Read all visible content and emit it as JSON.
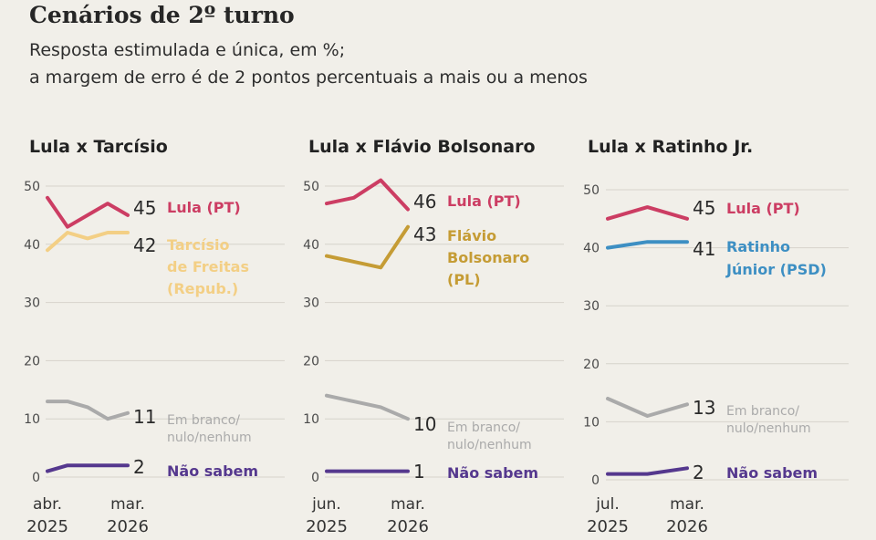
{
  "title": "Cenários de 2º turno",
  "subtitle_lines": [
    "Resposta estimulada e única, em %;",
    "a margem de erro é de 2 pontos percentuais a mais ou a menos"
  ],
  "colors": {
    "lula": "#cc3d63",
    "tarcisio": "#f3cf85",
    "flavio": "#c59c35",
    "ratinho": "#3d8fc3",
    "branco": "#aaaaaa",
    "nao_sabem": "#55388e",
    "grid": "#d6d3cb",
    "axis_text": "#4a4a4a"
  },
  "chart_data": [
    {
      "type": "line",
      "title": "Lula x Tarcísio",
      "ylim": [
        0,
        50
      ],
      "yticks": [
        0,
        10,
        20,
        30,
        40,
        50
      ],
      "x_labels": [
        [
          "abr.",
          "2025"
        ],
        [
          "mar.",
          "2026"
        ]
      ],
      "series": [
        {
          "name": "Lula (PT)",
          "label_lines": [
            "Lula (PT)"
          ],
          "color_key": "lula",
          "values": [
            48,
            43,
            45,
            47,
            45
          ],
          "final": "45"
        },
        {
          "name": "Tarcísio de Freitas (Repub.)",
          "label_lines": [
            "Tarcísio",
            "de Freitas",
            "(Repub.)"
          ],
          "color_key": "tarcisio",
          "values": [
            39,
            42,
            41,
            42,
            42
          ],
          "final": "42"
        },
        {
          "name": "Em branco/nulo/nenhum",
          "label_lines": [
            "Em branco/",
            "nulo/nenhum"
          ],
          "color_key": "branco",
          "values": [
            13,
            13,
            12,
            10,
            11
          ],
          "final": "11"
        },
        {
          "name": "Não sabem",
          "label_lines": [
            "Não sabem"
          ],
          "color_key": "nao_sabem",
          "values": [
            1,
            2,
            2,
            2,
            2
          ],
          "final": "2"
        }
      ]
    },
    {
      "type": "line",
      "title": "Lula x Flávio Bolsonaro",
      "ylim": [
        0,
        50
      ],
      "yticks": [
        0,
        10,
        20,
        30,
        40,
        50
      ],
      "x_labels": [
        [
          "jun.",
          "2025"
        ],
        [
          "mar.",
          "2026"
        ]
      ],
      "series": [
        {
          "name": "Lula (PT)",
          "label_lines": [
            "Lula (PT)"
          ],
          "color_key": "lula",
          "values": [
            47,
            48,
            51,
            46
          ],
          "final": "46"
        },
        {
          "name": "Flávio Bolsonaro (PL)",
          "label_lines": [
            "Flávio",
            "Bolsonaro",
            "(PL)"
          ],
          "color_key": "flavio",
          "values": [
            38,
            37,
            36,
            43
          ],
          "final": "43"
        },
        {
          "name": "Em branco/nulo/nenhum",
          "label_lines": [
            "Em branco/",
            "nulo/nenhum"
          ],
          "color_key": "branco",
          "values": [
            14,
            13,
            12,
            10
          ],
          "final": "10"
        },
        {
          "name": "Não sabem",
          "label_lines": [
            "Não sabem"
          ],
          "color_key": "nao_sabem",
          "values": [
            1,
            1,
            1,
            1
          ],
          "final": "1"
        }
      ]
    },
    {
      "type": "line",
      "title": "Lula x Ratinho Jr.",
      "ylim": [
        0,
        50
      ],
      "yticks": [
        0,
        10,
        20,
        30,
        40,
        50
      ],
      "x_labels": [
        [
          "jul.",
          "2025"
        ],
        [
          "mar.",
          "2026"
        ]
      ],
      "series": [
        {
          "name": "Lula (PT)",
          "label_lines": [
            "Lula (PT)"
          ],
          "color_key": "lula",
          "values": [
            45,
            47,
            45
          ],
          "final": "45"
        },
        {
          "name": "Ratinho Júnior (PSD)",
          "label_lines": [
            "Ratinho",
            "Júnior (PSD)"
          ],
          "color_key": "ratinho",
          "values": [
            40,
            41,
            41
          ],
          "final": "41"
        },
        {
          "name": "Em branco/nulo/nenhum",
          "label_lines": [
            "Em branco/",
            "nulo/nenhum"
          ],
          "color_key": "branco",
          "values": [
            14,
            11,
            13
          ],
          "final": "13"
        },
        {
          "name": "Não sabem",
          "label_lines": [
            "Não sabem"
          ],
          "color_key": "nao_sabem",
          "values": [
            1,
            1,
            2
          ],
          "final": "2"
        }
      ]
    }
  ]
}
